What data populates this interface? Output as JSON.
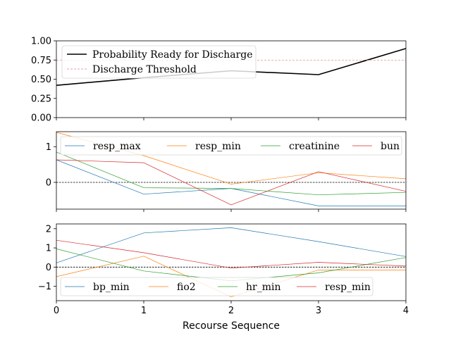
{
  "chart_data": [
    {
      "type": "line",
      "x": [
        0,
        1,
        2,
        3,
        4
      ],
      "ylim": [
        0,
        1.0
      ],
      "yticks": [
        "0.00",
        "0.25",
        "0.50",
        "0.75",
        "1.00"
      ],
      "legend_position": "upper-left",
      "series": [
        {
          "name": "Probability Ready for Discharge",
          "color": "#000000",
          "style": "solid",
          "values": [
            0.42,
            0.52,
            0.61,
            0.56,
            0.9
          ]
        },
        {
          "name": "Discharge Threshold",
          "color": "#e08080",
          "style": "dashed",
          "values": [
            0.75,
            0.75,
            0.75,
            0.75,
            0.75
          ]
        }
      ]
    },
    {
      "type": "line",
      "x": [
        0,
        1,
        2,
        3,
        4
      ],
      "ylim": [
        -0.75,
        1.42
      ],
      "yticks": [
        "0",
        "1"
      ],
      "zero_line": true,
      "legend_position": "top",
      "series": [
        {
          "name": "resp_max",
          "color": "#1f77b4",
          "values": [
            0.63,
            -0.33,
            -0.17,
            -0.66,
            -0.66
          ]
        },
        {
          "name": "resp_min",
          "color": "#ff7f0e",
          "values": [
            1.4,
            0.75,
            -0.05,
            0.27,
            0.1
          ]
        },
        {
          "name": "creatinine",
          "color": "#2ca02c",
          "values": [
            0.85,
            -0.15,
            -0.17,
            -0.35,
            -0.28
          ]
        },
        {
          "name": "bun",
          "color": "#d62728",
          "values": [
            0.63,
            0.55,
            -0.63,
            0.3,
            -0.25
          ]
        }
      ]
    },
    {
      "type": "line",
      "x": [
        0,
        1,
        2,
        3,
        4
      ],
      "ylim": [
        -1.75,
        2.25
      ],
      "yticks": [
        "−1",
        "0",
        "1",
        "2"
      ],
      "zero_line": true,
      "xticks": [
        "0",
        "1",
        "2",
        "3",
        "4"
      ],
      "xlabel": "Recourse Sequence",
      "legend_position": "bottom",
      "series": [
        {
          "name": "bp_min",
          "color": "#1f77b4",
          "values": [
            0.22,
            1.78,
            2.05,
            1.33,
            0.55
          ]
        },
        {
          "name": "fio2",
          "color": "#ff7f0e",
          "values": [
            -0.5,
            0.57,
            -1.55,
            -0.15,
            -0.15
          ]
        },
        {
          "name": "hr_min",
          "color": "#2ca02c",
          "values": [
            0.95,
            -0.2,
            -0.72,
            -0.3,
            0.5
          ]
        },
        {
          "name": "resp_min",
          "color": "#d62728",
          "values": [
            1.4,
            0.75,
            -0.05,
            0.25,
            0.05
          ]
        }
      ]
    }
  ]
}
